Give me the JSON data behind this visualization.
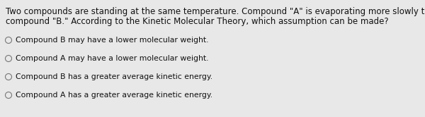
{
  "background_color": "#e8e8e8",
  "question_line1": "Two compounds are standing at the same temperature. Compound \"A\" is evaporating more slowly than",
  "question_line2": "compound \"B.\" According to the Kinetic Molecular Theory, which assumption can be made?",
  "options": [
    "Compound B may have a lower molecular weight.",
    "Compound A may have a lower molecular weight.",
    "Compound B has a greater average kinetic energy.",
    "Compound A has a greater average kinetic energy."
  ],
  "question_fontsize": 8.5,
  "option_fontsize": 7.8,
  "text_color": "#111111",
  "circle_color": "#777777",
  "fig_width": 6.0,
  "fig_height": 1.66,
  "dpi": 100
}
